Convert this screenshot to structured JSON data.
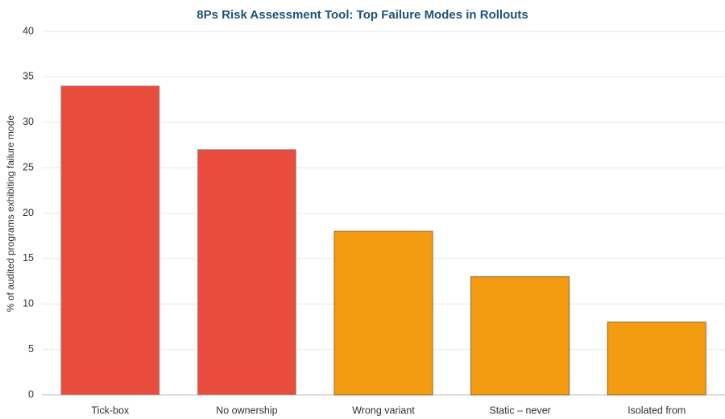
{
  "chart_data": {
    "type": "bar",
    "title": "8Ps Risk Assessment Tool: Top Failure Modes in Rollouts",
    "y_label": "% of audited programs exhibiting failure mode",
    "categories": [
      "Tick-box",
      "No ownership",
      "Wrong variant",
      "Static – never",
      "Isolated from"
    ],
    "values": [
      34,
      27,
      18,
      13,
      8
    ],
    "colors": [
      "#e74c3c",
      "#e74c3c",
      "#f39c12",
      "#f39c12",
      "#f39c12"
    ],
    "ylim": [
      0,
      40
    ],
    "yticks": [
      0,
      5,
      10,
      15,
      20,
      25,
      30,
      35,
      40
    ],
    "grid": true
  }
}
